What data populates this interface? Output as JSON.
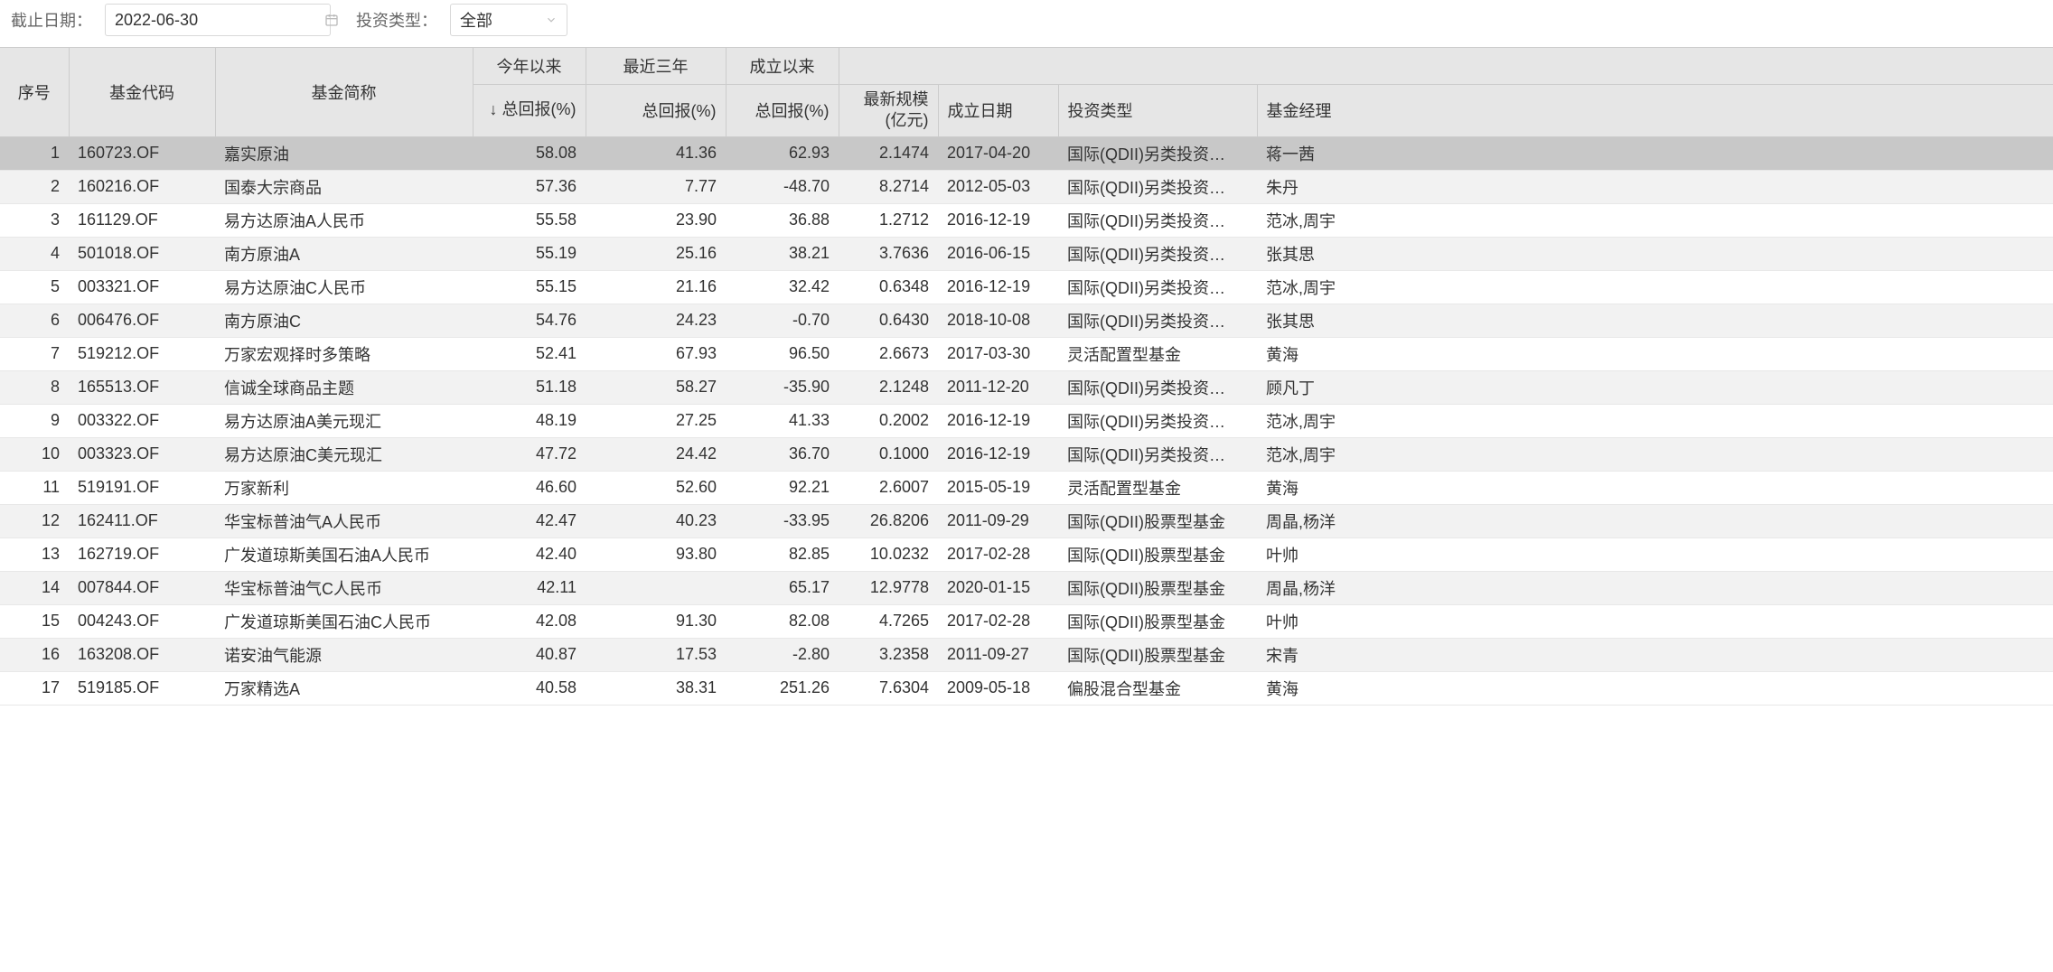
{
  "filters": {
    "date_label": "截止日期：",
    "date_value": "2022-06-30",
    "type_label": "投资类型：",
    "type_value": "全部"
  },
  "table": {
    "headers": {
      "seq": "序号",
      "code": "基金代码",
      "name": "基金简称",
      "ytd_group": "今年以来",
      "three_year_group": "最近三年",
      "inception_group": "成立以来",
      "total_return_sort": "↓ 总回报(%)",
      "total_return": "总回报(%)",
      "latest_size": "最新规模(亿元)",
      "inception_date": "成立日期",
      "inv_type": "投资类型",
      "manager": "基金经理"
    },
    "rows": [
      {
        "seq": "1",
        "code": "160723.OF",
        "name": "嘉实原油",
        "r1": "58.08",
        "r2": "41.36",
        "r3": "62.93",
        "size": "2.1474",
        "date": "2017-04-20",
        "type": "国际(QDII)另类投资…",
        "mgr": "蒋一茜",
        "selected": true
      },
      {
        "seq": "2",
        "code": "160216.OF",
        "name": "国泰大宗商品",
        "r1": "57.36",
        "r2": "7.77",
        "r3": "-48.70",
        "size": "8.2714",
        "date": "2012-05-03",
        "type": "国际(QDII)另类投资…",
        "mgr": "朱丹"
      },
      {
        "seq": "3",
        "code": "161129.OF",
        "name": "易方达原油A人民币",
        "r1": "55.58",
        "r2": "23.90",
        "r3": "36.88",
        "size": "1.2712",
        "date": "2016-12-19",
        "type": "国际(QDII)另类投资…",
        "mgr": "范冰,周宇"
      },
      {
        "seq": "4",
        "code": "501018.OF",
        "name": "南方原油A",
        "r1": "55.19",
        "r2": "25.16",
        "r3": "38.21",
        "size": "3.7636",
        "date": "2016-06-15",
        "type": "国际(QDII)另类投资…",
        "mgr": "张其思"
      },
      {
        "seq": "5",
        "code": "003321.OF",
        "name": "易方达原油C人民币",
        "r1": "55.15",
        "r2": "21.16",
        "r3": "32.42",
        "size": "0.6348",
        "date": "2016-12-19",
        "type": "国际(QDII)另类投资…",
        "mgr": "范冰,周宇"
      },
      {
        "seq": "6",
        "code": "006476.OF",
        "name": "南方原油C",
        "r1": "54.76",
        "r2": "24.23",
        "r3": "-0.70",
        "size": "0.6430",
        "date": "2018-10-08",
        "type": "国际(QDII)另类投资…",
        "mgr": "张其思"
      },
      {
        "seq": "7",
        "code": "519212.OF",
        "name": "万家宏观择时多策略",
        "r1": "52.41",
        "r2": "67.93",
        "r3": "96.50",
        "size": "2.6673",
        "date": "2017-03-30",
        "type": "灵活配置型基金",
        "mgr": "黄海"
      },
      {
        "seq": "8",
        "code": "165513.OF",
        "name": "信诚全球商品主题",
        "r1": "51.18",
        "r2": "58.27",
        "r3": "-35.90",
        "size": "2.1248",
        "date": "2011-12-20",
        "type": "国际(QDII)另类投资…",
        "mgr": "顾凡丁"
      },
      {
        "seq": "9",
        "code": "003322.OF",
        "name": "易方达原油A美元现汇",
        "r1": "48.19",
        "r2": "27.25",
        "r3": "41.33",
        "size": "0.2002",
        "date": "2016-12-19",
        "type": "国际(QDII)另类投资…",
        "mgr": "范冰,周宇"
      },
      {
        "seq": "10",
        "code": "003323.OF",
        "name": "易方达原油C美元现汇",
        "r1": "47.72",
        "r2": "24.42",
        "r3": "36.70",
        "size": "0.1000",
        "date": "2016-12-19",
        "type": "国际(QDII)另类投资…",
        "mgr": "范冰,周宇"
      },
      {
        "seq": "11",
        "code": "519191.OF",
        "name": "万家新利",
        "r1": "46.60",
        "r2": "52.60",
        "r3": "92.21",
        "size": "2.6007",
        "date": "2015-05-19",
        "type": "灵活配置型基金",
        "mgr": "黄海"
      },
      {
        "seq": "12",
        "code": "162411.OF",
        "name": "华宝标普油气A人民币",
        "r1": "42.47",
        "r2": "40.23",
        "r3": "-33.95",
        "size": "26.8206",
        "date": "2011-09-29",
        "type": "国际(QDII)股票型基金",
        "mgr": "周晶,杨洋"
      },
      {
        "seq": "13",
        "code": "162719.OF",
        "name": "广发道琼斯美国石油A人民币",
        "r1": "42.40",
        "r2": "93.80",
        "r3": "82.85",
        "size": "10.0232",
        "date": "2017-02-28",
        "type": "国际(QDII)股票型基金",
        "mgr": "叶帅"
      },
      {
        "seq": "14",
        "code": "007844.OF",
        "name": "华宝标普油气C人民币",
        "r1": "42.11",
        "r2": "",
        "r3": "65.17",
        "size": "12.9778",
        "date": "2020-01-15",
        "type": "国际(QDII)股票型基金",
        "mgr": "周晶,杨洋"
      },
      {
        "seq": "15",
        "code": "004243.OF",
        "name": "广发道琼斯美国石油C人民币",
        "r1": "42.08",
        "r2": "91.30",
        "r3": "82.08",
        "size": "4.7265",
        "date": "2017-02-28",
        "type": "国际(QDII)股票型基金",
        "mgr": "叶帅"
      },
      {
        "seq": "16",
        "code": "163208.OF",
        "name": "诺安油气能源",
        "r1": "40.87",
        "r2": "17.53",
        "r3": "-2.80",
        "size": "3.2358",
        "date": "2011-09-27",
        "type": "国际(QDII)股票型基金",
        "mgr": "宋青"
      },
      {
        "seq": "17",
        "code": "519185.OF",
        "name": "万家精选A",
        "r1": "40.58",
        "r2": "38.31",
        "r3": "251.26",
        "size": "7.6304",
        "date": "2009-05-18",
        "type": "偏股混合型基金",
        "mgr": "黄海"
      }
    ]
  }
}
